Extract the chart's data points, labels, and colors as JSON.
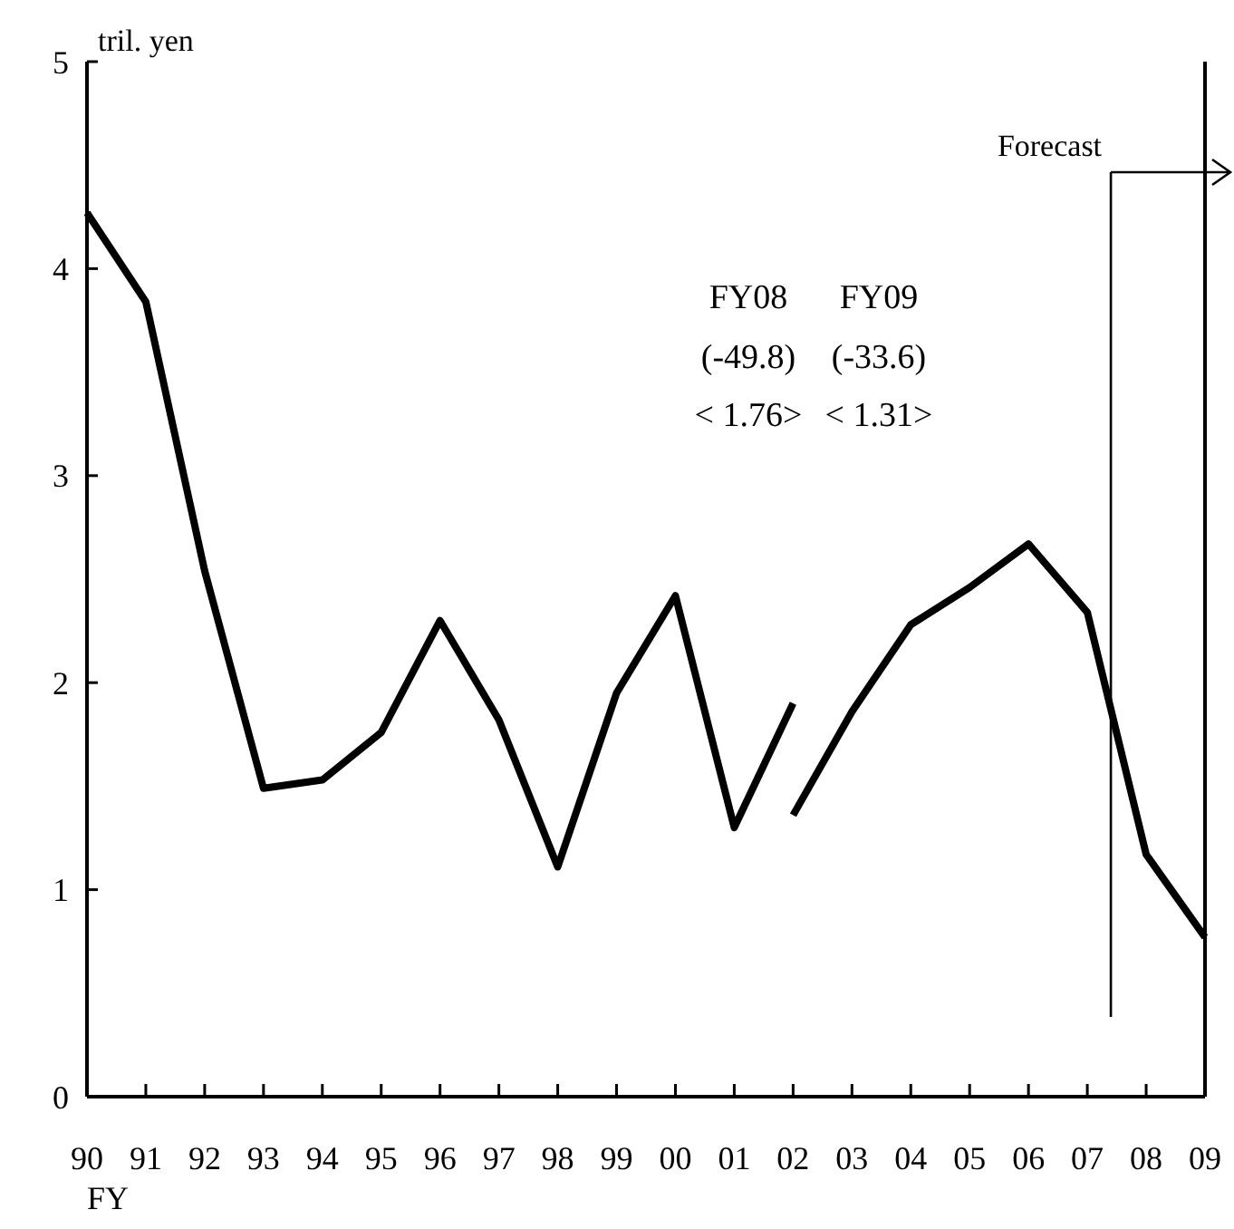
{
  "chart_data": {
    "type": "line",
    "ylabel": "tril. yen",
    "xlabel": "FY",
    "x": [
      1990,
      1991,
      1992,
      1993,
      1994,
      1995,
      1996,
      1997,
      1998,
      1999,
      2000,
      2001,
      2002,
      2003,
      2004,
      2005,
      2006,
      2007,
      2008,
      2009
    ],
    "xlim": [
      1990,
      2009
    ],
    "xticks": [
      {
        "value": 1990,
        "label": "90"
      },
      {
        "value": 1991,
        "label": "91"
      },
      {
        "value": 1992,
        "label": "92"
      },
      {
        "value": 1993,
        "label": "93"
      },
      {
        "value": 1994,
        "label": "94"
      },
      {
        "value": 1995,
        "label": "95"
      },
      {
        "value": 1996,
        "label": "96"
      },
      {
        "value": 1997,
        "label": "97"
      },
      {
        "value": 1998,
        "label": "98"
      },
      {
        "value": 1999,
        "label": "99"
      },
      {
        "value": 2000,
        "label": "00"
      },
      {
        "value": 2001,
        "label": "01"
      },
      {
        "value": 2002,
        "label": "02"
      },
      {
        "value": 2003,
        "label": "03"
      },
      {
        "value": 2004,
        "label": "04"
      },
      {
        "value": 2005,
        "label": "05"
      },
      {
        "value": 2006,
        "label": "06"
      },
      {
        "value": 2007,
        "label": "07"
      },
      {
        "value": 2008,
        "label": "08"
      },
      {
        "value": 2009,
        "label": "09"
      }
    ],
    "series": [
      {
        "color": "#000000",
        "values": [
          4.27,
          3.84,
          2.54,
          1.49,
          1.53,
          1.76,
          2.3,
          1.82,
          1.11,
          1.95,
          2.42,
          1.3,
          1.9,
          null,
          null,
          null,
          null,
          null,
          null,
          null
        ]
      },
      {
        "color": "#000000",
        "values": [
          null,
          null,
          null,
          null,
          null,
          null,
          null,
          null,
          null,
          null,
          null,
          null,
          1.36,
          1.86,
          2.28,
          2.46,
          2.67,
          2.34,
          1.17,
          0.77
        ]
      }
    ],
    "ylim": [
      0,
      5
    ],
    "yticks": [
      0,
      1,
      2,
      3,
      4,
      5
    ],
    "grid": false,
    "marker": "none",
    "line_style": "solid",
    "ref_lines": [
      {
        "axis": "x",
        "value": 2007.4,
        "label": "Forecast",
        "color": "#000000"
      }
    ],
    "annotations": [
      "FY08",
      "(-49.8)",
      "< 1.76>",
      "FY09",
      "(-33.6)",
      "< 1.31>"
    ]
  }
}
